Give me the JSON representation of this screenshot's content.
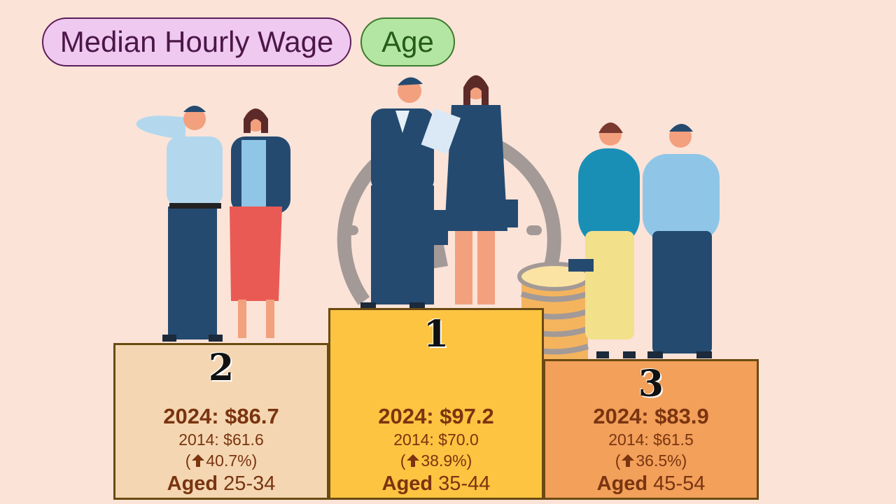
{
  "header": {
    "topic": "Median Hourly Wage",
    "category": "Age"
  },
  "podium": [
    {
      "rank": "2",
      "value_2024": "2024: $86.7",
      "value_2014": "2014: $61.6",
      "change_open": "(",
      "change": "40.7%)",
      "age_prefix": "Aged",
      "age_range": " 25-34"
    },
    {
      "rank": "1",
      "value_2024": "2024: $97.2",
      "value_2014": "2014: $70.0",
      "change_open": "(",
      "change": "38.9%)",
      "age_prefix": "Aged",
      "age_range": " 35-44"
    },
    {
      "rank": "3",
      "value_2024": "2024: $83.9",
      "value_2014": "2014: $61.5",
      "change_open": "(",
      "change": "36.5%)",
      "age_prefix": "Aged",
      "age_range": " 45-54"
    }
  ],
  "colors": {
    "background": "#fbe3d8",
    "rank2_block": "#f4d7b2",
    "rank1_block": "#fcc441",
    "rank3_block": "#f2a05a",
    "text": "#7a3410"
  }
}
